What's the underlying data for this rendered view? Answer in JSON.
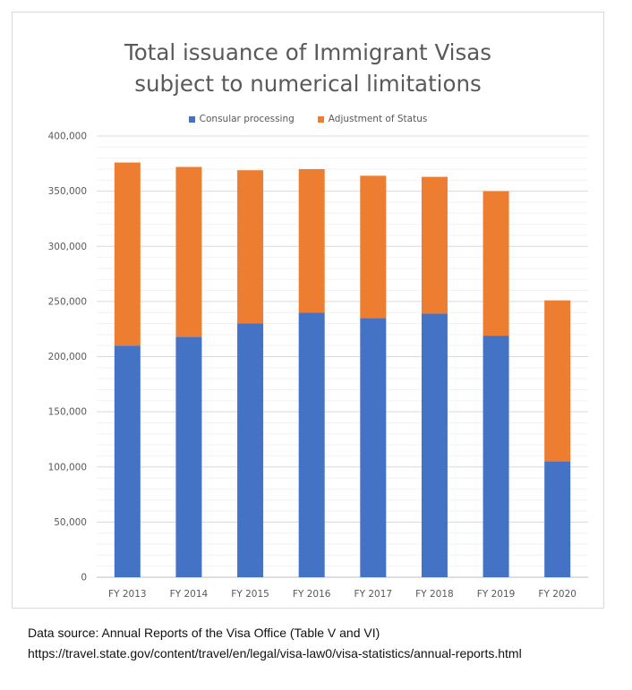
{
  "chart_data": {
    "type": "bar",
    "stacked": true,
    "title_lines": [
      "Total issuance of Immigrant Visas",
      "subject to numerical limitations"
    ],
    "categories": [
      "FY 2013",
      "FY 2014",
      "FY 2015",
      "FY 2016",
      "FY 2017",
      "FY 2018",
      "FY 2019",
      "FY 2020"
    ],
    "series": [
      {
        "name": "Consular processing",
        "color": "#4472c4",
        "values": [
          210000,
          218000,
          230000,
          240000,
          235000,
          239000,
          219000,
          105000
        ]
      },
      {
        "name": "Adjustment of Status",
        "color": "#ed7d31",
        "values": [
          166000,
          154000,
          139000,
          130000,
          129000,
          124000,
          131000,
          146000
        ]
      }
    ],
    "ylim": [
      0,
      400000
    ],
    "yticks": [
      "0",
      "50,000",
      "100,000",
      "150,000",
      "200,000",
      "250,000",
      "300,000",
      "350,000",
      "400,000"
    ],
    "grid": true,
    "legend_position": "top"
  },
  "source": {
    "line1": "Data source: Annual Reports of the Visa Office (Table V and VI)",
    "line2": "https://travel.state.gov/content/travel/en/legal/visa-law0/visa-statistics/annual-reports.html"
  }
}
